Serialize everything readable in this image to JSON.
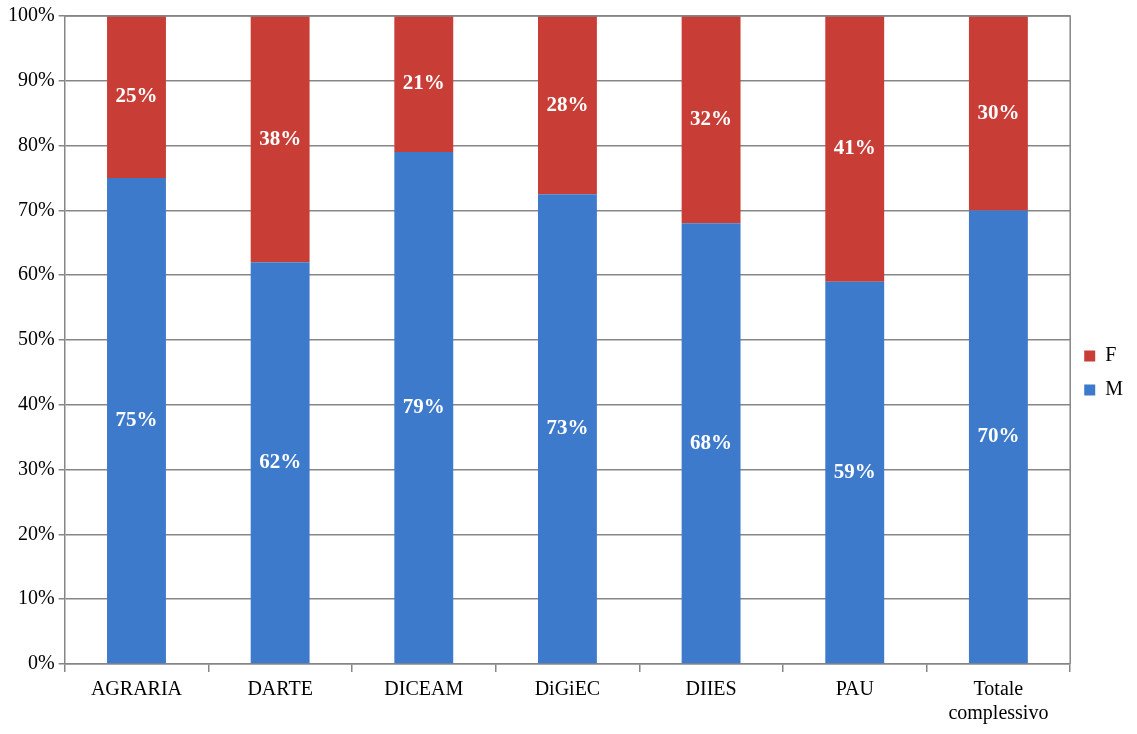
{
  "chart_data": {
    "type": "bar",
    "stacked": true,
    "categories": [
      "AGRARIA",
      "DARTE",
      "DICEAM",
      "DiGiEC",
      "DIIES",
      "PAU",
      "Totale complessivo"
    ],
    "series": [
      {
        "name": "M",
        "color": "#3d7acb",
        "values": [
          75,
          62,
          79,
          72.5,
          68,
          59,
          70
        ],
        "value_labels": [
          "75%",
          "62%",
          "79%",
          "73%",
          "68%",
          "59%",
          "70%"
        ]
      },
      {
        "name": "F",
        "color": "#c93d37",
        "values": [
          25,
          38,
          21,
          27.5,
          32,
          41,
          30
        ],
        "value_labels": [
          "25%",
          "38%",
          "21%",
          "28%",
          "32%",
          "41%",
          "30%"
        ]
      }
    ],
    "ylim": [
      0,
      100
    ],
    "yticks": [
      {
        "value": 0,
        "label": "0%"
      },
      {
        "value": 10,
        "label": "10%"
      },
      {
        "value": 20,
        "label": "20%"
      },
      {
        "value": 30,
        "label": "30%"
      },
      {
        "value": 40,
        "label": "40%"
      },
      {
        "value": 50,
        "label": "50%"
      },
      {
        "value": 60,
        "label": "60%"
      },
      {
        "value": 70,
        "label": "70%"
      },
      {
        "value": 80,
        "label": "80%"
      },
      {
        "value": 90,
        "label": "90%"
      },
      {
        "value": 100,
        "label": "100%"
      }
    ],
    "grid": "y",
    "legend": "right"
  }
}
